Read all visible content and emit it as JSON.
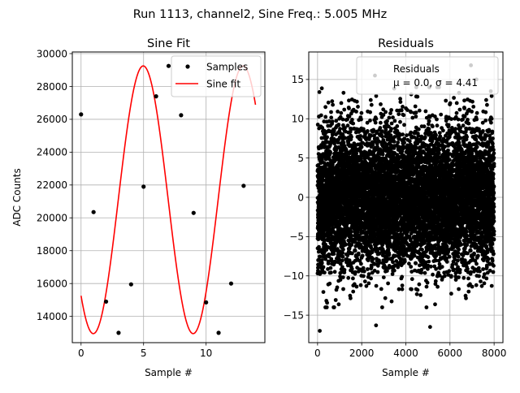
{
  "suptitle": "Run 1113, channel2, Sine Freq.: 5.005 MHz",
  "chart_data": [
    {
      "type": "line",
      "title": "Sine Fit",
      "xlabel": "Sample #",
      "ylabel": "ADC Counts",
      "xlim": [
        -0.7,
        14.7
      ],
      "ylim": [
        12400,
        30100
      ],
      "xticks": [
        0,
        5,
        10
      ],
      "yticks": [
        14000,
        16000,
        18000,
        20000,
        22000,
        24000,
        26000,
        28000,
        30000
      ],
      "grid": true,
      "legend": {
        "placement": "top-right",
        "entries": [
          "Samples",
          "Sine fit"
        ]
      },
      "series": [
        {
          "name": "Samples",
          "kind": "scatter",
          "color": "#000000",
          "x": [
            0,
            1,
            2,
            3,
            4,
            5,
            6,
            7,
            8,
            9,
            10,
            11,
            12,
            13
          ],
          "y": [
            26300,
            20350,
            14900,
            13000,
            15950,
            21900,
            27400,
            29250,
            26250,
            20300,
            14850,
            13000,
            16000,
            21950
          ]
        },
        {
          "name": "Sine fit",
          "kind": "line",
          "color": "#ff0000",
          "model": {
            "amplitude": 8150,
            "offset": 21100,
            "period": 7.985,
            "x0": 0.98,
            "xmax": 13.95
          }
        }
      ]
    },
    {
      "type": "scatter",
      "title": "Residuals",
      "xlabel": "Sample #",
      "ylabel": "",
      "xlim": [
        -400,
        8400
      ],
      "ylim": [
        -18.5,
        18.5
      ],
      "xticks": [
        0,
        2000,
        4000,
        6000,
        8000
      ],
      "yticks": [
        -15,
        -10,
        -5,
        0,
        5,
        10,
        15
      ],
      "grid": true,
      "legend": {
        "placement": "top-right",
        "entries": [
          "Residuals",
          "μ = 0.0, σ = 4.41"
        ]
      },
      "series": [
        {
          "name": "Residuals",
          "color": "#000000",
          "n_points": 8000,
          "x_range": [
            0,
            8000
          ],
          "mean": 0.0,
          "std": 4.41,
          "highlighted_points": [
            [
              100,
              -17
            ],
            [
              2600,
              15.5
            ],
            [
              2650,
              -16.3
            ],
            [
              5100,
              -16.5
            ],
            [
              6950,
              16.8
            ],
            [
              7200,
              15
            ],
            [
              7850,
              13.5
            ]
          ]
        }
      ]
    }
  ]
}
